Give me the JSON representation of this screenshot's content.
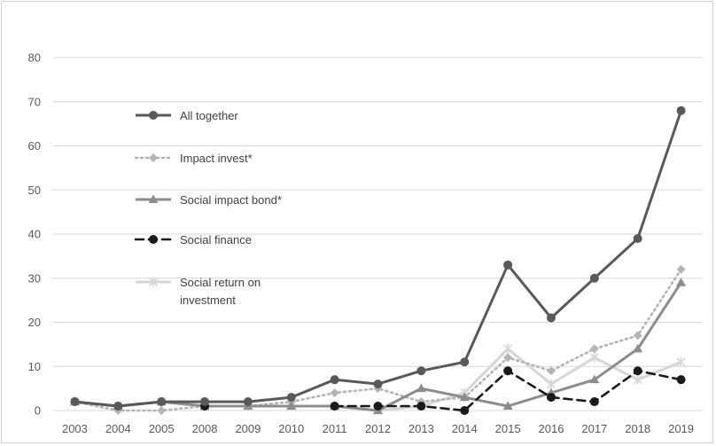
{
  "chart_data": {
    "type": "line",
    "title": "",
    "xlabel": "",
    "ylabel": "",
    "ylim": [
      0,
      80
    ],
    "yticks": [
      0,
      10,
      20,
      30,
      40,
      50,
      60,
      70,
      80
    ],
    "grid": true,
    "legend_position": "upper-left-inside",
    "categories": [
      "2003",
      "2004",
      "2005",
      "2008",
      "2009",
      "2010",
      "2011",
      "2012",
      "2013",
      "2014",
      "2015",
      "2016",
      "2017",
      "2018",
      "2019"
    ],
    "series": [
      {
        "name": "All together",
        "color": "#595959",
        "style": "solid",
        "marker": "circle",
        "values": [
          2,
          1,
          2,
          2,
          2,
          3,
          7,
          6,
          9,
          11,
          33,
          21,
          30,
          39,
          68
        ]
      },
      {
        "name": "Impact invest*",
        "color": "#b4b4b4",
        "style": "dotted",
        "marker": "diamond",
        "values": [
          2,
          0,
          0,
          1,
          1,
          2,
          4,
          5,
          2,
          3,
          12,
          9,
          14,
          17,
          32
        ]
      },
      {
        "name": "Social impact bond*",
        "color": "#8c8c8c",
        "style": "solid",
        "marker": "triangle",
        "values": [
          2,
          1,
          2,
          1,
          1,
          1,
          1,
          0,
          5,
          3,
          1,
          4,
          7,
          14,
          29
        ]
      },
      {
        "name": "Social finance",
        "color": "#1a1a1a",
        "style": "dashed",
        "marker": "circle",
        "values": [
          null,
          null,
          null,
          1,
          null,
          null,
          1,
          1,
          1,
          0,
          9,
          3,
          2,
          9,
          7
        ]
      },
      {
        "name": "Social return on investment",
        "label_lines": [
          "Social return on",
          "investment"
        ],
        "color": "#d6d6d6",
        "style": "solid",
        "marker": "star",
        "values": [
          2,
          1,
          2,
          1,
          1,
          1,
          1,
          0,
          1,
          4,
          14,
          6,
          12,
          7,
          11
        ]
      }
    ]
  }
}
